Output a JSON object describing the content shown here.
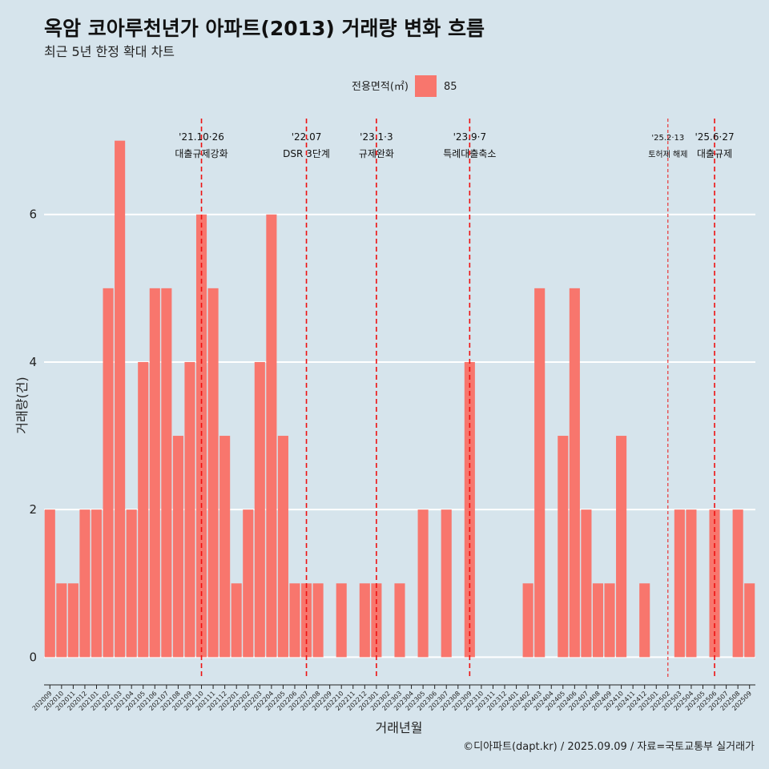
{
  "chart_data": {
    "type": "bar",
    "title": "옥암 코아루천년가 아파트(2013) 거래량 변화 흐름",
    "subtitle": "최근 5년 한정 확대 차트",
    "xlabel": "거래년월",
    "ylabel": "거래량(건)",
    "caption": "©디아파트(dapt.kr) / 2025.09.09 / 자료=국토교통부 실거래가",
    "legend": {
      "title": "전용면적(㎡)",
      "position": "top",
      "entries": [
        {
          "name": "85",
          "color": "#f8766d"
        }
      ]
    },
    "ylim": [
      -0.3,
      7.3
    ],
    "yticks": [
      0,
      2,
      4,
      6
    ],
    "grid": true,
    "categories": [
      "202009",
      "202010",
      "202011",
      "202012",
      "202101",
      "202102",
      "202103",
      "202104",
      "202105",
      "202106",
      "202107",
      "202108",
      "202109",
      "202110",
      "202111",
      "202112",
      "202201",
      "202202",
      "202203",
      "202204",
      "202205",
      "202206",
      "202207",
      "202208",
      "202209",
      "202210",
      "202211",
      "202212",
      "202301",
      "202302",
      "202303",
      "202304",
      "202305",
      "202306",
      "202307",
      "202308",
      "202309",
      "202310",
      "202311",
      "202312",
      "202401",
      "202402",
      "202403",
      "202404",
      "202405",
      "202406",
      "202407",
      "202408",
      "202409",
      "202410",
      "202411",
      "202412",
      "202501",
      "202502",
      "202503",
      "202504",
      "202505",
      "202506",
      "202507",
      "202508",
      "202509"
    ],
    "series": [
      {
        "name": "85",
        "color": "#f8766d",
        "values": [
          2,
          1,
          1,
          2,
          2,
          5,
          7,
          2,
          4,
          5,
          5,
          3,
          4,
          6,
          5,
          3,
          1,
          2,
          4,
          6,
          3,
          1,
          1,
          1,
          0,
          1,
          0,
          1,
          1,
          0,
          1,
          0,
          2,
          0,
          2,
          0,
          4,
          0,
          0,
          0,
          0,
          1,
          5,
          0,
          3,
          5,
          2,
          1,
          1,
          3,
          0,
          1,
          0,
          0,
          2,
          2,
          0,
          2,
          0,
          2,
          1
        ]
      }
    ],
    "events": [
      {
        "date": "'21.10·26",
        "label": "대출규제강화",
        "category": "202110",
        "style": "major"
      },
      {
        "date": "'22.07",
        "label": "DSR 3단계",
        "category": "202207",
        "style": "major"
      },
      {
        "date": "'23.1·3",
        "label": "규제완화",
        "category": "202301",
        "style": "major"
      },
      {
        "date": "'23.9·7",
        "label": "특례대출축소",
        "category": "202309",
        "style": "major"
      },
      {
        "date": "'25.2·13",
        "label": "토허제 해제",
        "category": "202502",
        "style": "minor"
      },
      {
        "date": "'25.6·27",
        "label": "대출규제",
        "category": "202506",
        "style": "major"
      }
    ],
    "colors": {
      "background": "#d6e4ec",
      "grid": "#ffffff",
      "event_line": "#ee1111",
      "bar": "#f8766d"
    }
  }
}
